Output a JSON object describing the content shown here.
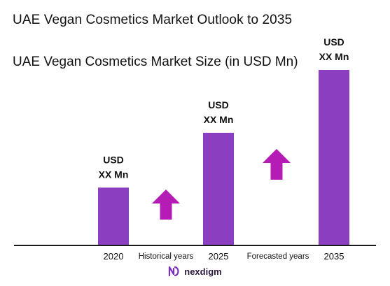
{
  "chart_data": {
    "type": "bar",
    "title": "UAE Vegan Cosmetics Market Outlook to 2035",
    "subtitle": "UAE Vegan Cosmetics Market Size (in USD Mn)",
    "categories": [
      "2020",
      "2025",
      "2035"
    ],
    "values": [
      1.0,
      1.96,
      3.06
    ],
    "value_labels": [
      [
        "USD",
        "XX Mn"
      ],
      [
        "USD",
        "XX Mn"
      ],
      [
        "USD",
        "XX Mn"
      ]
    ],
    "period_labels": [
      "Historical years",
      "Forecasted years"
    ],
    "ylim": [
      0,
      3.06
    ],
    "grid": false,
    "bar_color": "#8b3fc0",
    "arrow_color": "#b51bb5"
  },
  "brand": {
    "name": "nexdigm",
    "color": "#7b2fbf"
  }
}
